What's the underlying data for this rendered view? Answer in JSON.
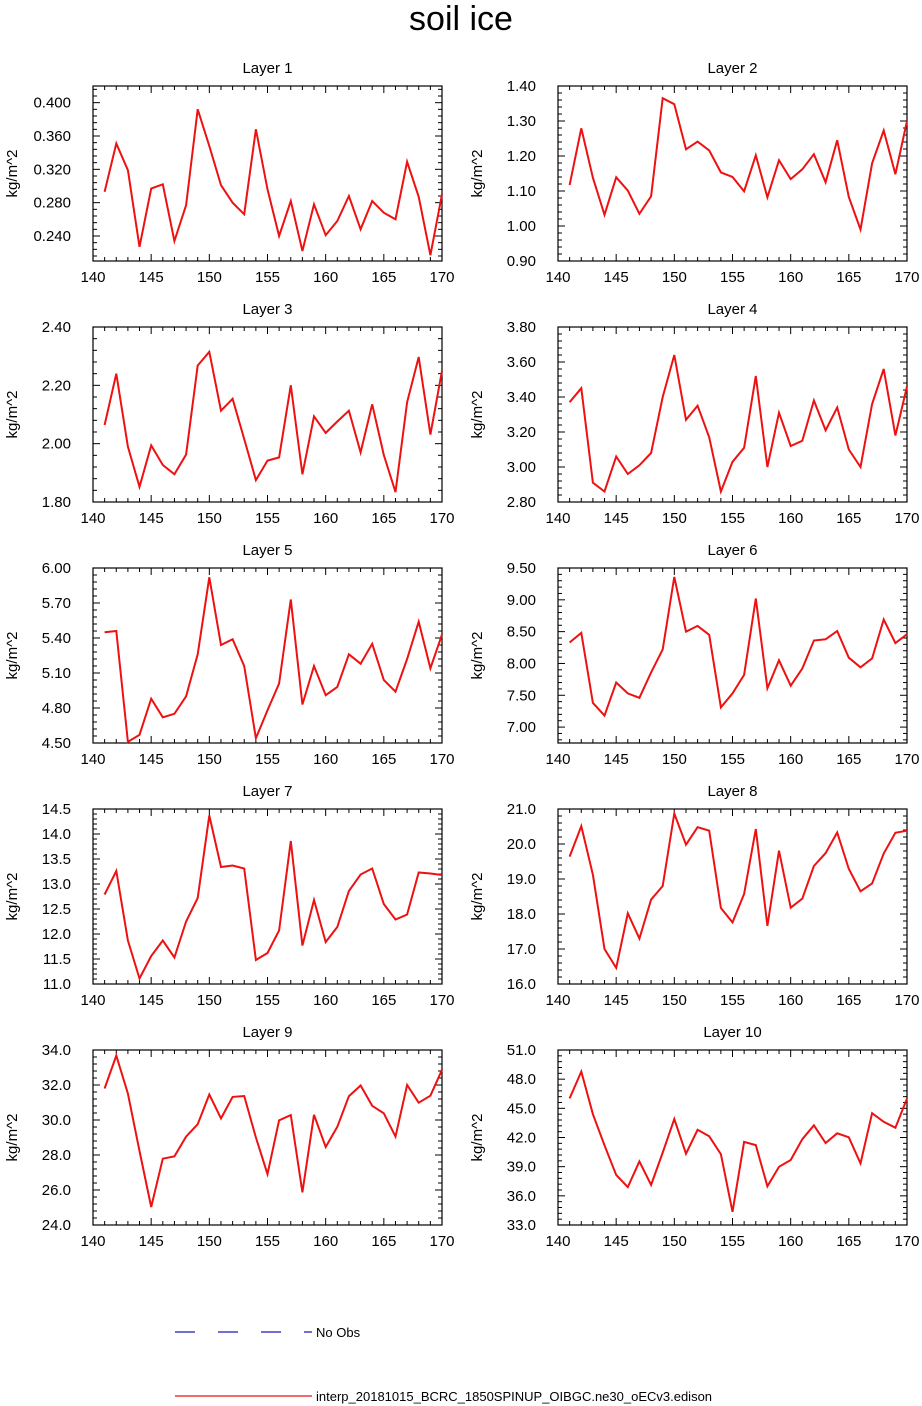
{
  "figure_title": "soil ice",
  "colors": {
    "series": "#ee1111",
    "no_obs": "#1a1ab4",
    "axis": "#000000"
  },
  "legend": [
    {
      "label": "No Obs",
      "style": "dashed",
      "color": "#1a1ab4"
    },
    {
      "label": "interp_20181015_BCRC_1850SPINUP_OIBGC.ne30_oECv3.edison",
      "style": "solid",
      "color": "#ee1111"
    }
  ],
  "chart_data": [
    {
      "type": "line",
      "title": "Layer 1",
      "ylabel": "kg/m^2",
      "xlim": [
        140,
        170
      ],
      "ylim": [
        0.21,
        0.42
      ],
      "xticks": [
        "140",
        "145",
        "150",
        "155",
        "160",
        "165",
        "170"
      ],
      "yticks": [
        "0.240",
        "0.280",
        "0.320",
        "0.360",
        "0.400"
      ],
      "x": [
        141,
        142,
        143,
        144,
        145,
        146,
        147,
        148,
        149,
        150,
        151,
        152,
        153,
        154,
        155,
        156,
        157,
        158,
        159,
        160,
        161,
        162,
        163,
        164,
        165,
        166,
        167,
        168,
        169,
        170
      ],
      "values": [
        0.293,
        0.351,
        0.319,
        0.227,
        0.297,
        0.302,
        0.234,
        0.277,
        0.392,
        0.348,
        0.301,
        0.28,
        0.266,
        0.368,
        0.296,
        0.24,
        0.282,
        0.222,
        0.278,
        0.241,
        0.258,
        0.288,
        0.248,
        0.282,
        0.268,
        0.26,
        0.329,
        0.287,
        0.217,
        0.29
      ]
    },
    {
      "type": "line",
      "title": "Layer 2",
      "ylabel": "kg/m^2",
      "xlim": [
        140,
        170
      ],
      "ylim": [
        0.9,
        1.4
      ],
      "xticks": [
        "140",
        "145",
        "150",
        "155",
        "160",
        "165",
        "170"
      ],
      "yticks": [
        "0.90",
        "1.00",
        "1.10",
        "1.20",
        "1.30",
        "1.40"
      ],
      "x": [
        141,
        142,
        143,
        144,
        145,
        146,
        147,
        148,
        149,
        150,
        151,
        152,
        153,
        154,
        155,
        156,
        157,
        158,
        159,
        160,
        161,
        162,
        163,
        164,
        165,
        166,
        167,
        168,
        169,
        170
      ],
      "values": [
        1.117,
        1.279,
        1.138,
        1.032,
        1.139,
        1.101,
        1.035,
        1.085,
        1.365,
        1.348,
        1.219,
        1.241,
        1.216,
        1.153,
        1.14,
        1.099,
        1.202,
        1.082,
        1.188,
        1.134,
        1.162,
        1.205,
        1.125,
        1.245,
        1.083,
        0.99,
        1.179,
        1.273,
        1.148,
        1.3
      ]
    },
    {
      "type": "line",
      "title": "Layer 3",
      "ylabel": "kg/m^2",
      "xlim": [
        140,
        170
      ],
      "ylim": [
        1.8,
        2.4
      ],
      "xticks": [
        "140",
        "145",
        "150",
        "155",
        "160",
        "165",
        "170"
      ],
      "yticks": [
        "1.80",
        "2.00",
        "2.20",
        "2.40"
      ],
      "x": [
        141,
        142,
        143,
        144,
        145,
        146,
        147,
        148,
        149,
        150,
        151,
        152,
        153,
        154,
        155,
        156,
        157,
        158,
        159,
        160,
        161,
        162,
        163,
        164,
        165,
        166,
        167,
        168,
        169,
        170
      ],
      "values": [
        2.064,
        2.24,
        1.99,
        1.852,
        1.994,
        1.927,
        1.895,
        1.963,
        2.268,
        2.315,
        2.113,
        2.154,
        2.016,
        1.875,
        1.942,
        1.953,
        2.2,
        1.895,
        2.094,
        2.037,
        2.076,
        2.113,
        1.97,
        2.135,
        1.961,
        1.834,
        2.142,
        2.297,
        2.031,
        2.25
      ]
    },
    {
      "type": "line",
      "title": "Layer 4",
      "ylabel": "kg/m^2",
      "xlim": [
        140,
        170
      ],
      "ylim": [
        2.8,
        3.8
      ],
      "xticks": [
        "140",
        "145",
        "150",
        "155",
        "160",
        "165",
        "170"
      ],
      "yticks": [
        "2.80",
        "3.00",
        "3.20",
        "3.40",
        "3.60",
        "3.80"
      ],
      "x": [
        141,
        142,
        143,
        144,
        145,
        146,
        147,
        148,
        149,
        150,
        151,
        152,
        153,
        154,
        155,
        156,
        157,
        158,
        159,
        160,
        161,
        162,
        163,
        164,
        165,
        166,
        167,
        168,
        169,
        170
      ],
      "values": [
        3.37,
        3.45,
        2.91,
        2.86,
        3.06,
        2.96,
        3.01,
        3.08,
        3.4,
        3.64,
        3.27,
        3.35,
        3.17,
        2.86,
        3.03,
        3.11,
        3.52,
        3.0,
        3.31,
        3.12,
        3.15,
        3.38,
        3.21,
        3.34,
        3.1,
        3.0,
        3.36,
        3.56,
        3.18,
        3.46
      ]
    },
    {
      "type": "line",
      "title": "Layer 5",
      "ylabel": "kg/m^2",
      "xlim": [
        140,
        170
      ],
      "ylim": [
        4.5,
        6.0
      ],
      "xticks": [
        "140",
        "145",
        "150",
        "155",
        "160",
        "165",
        "170"
      ],
      "yticks": [
        "4.50",
        "4.80",
        "5.10",
        "5.40",
        "5.70",
        "6.00"
      ],
      "x": [
        141,
        142,
        143,
        144,
        145,
        146,
        147,
        148,
        149,
        150,
        151,
        152,
        153,
        154,
        155,
        156,
        157,
        158,
        159,
        160,
        161,
        162,
        163,
        164,
        165,
        166,
        167,
        168,
        169,
        170
      ],
      "values": [
        5.45,
        5.46,
        4.51,
        4.57,
        4.88,
        4.72,
        4.75,
        4.9,
        5.26,
        5.92,
        5.34,
        5.39,
        5.16,
        4.54,
        4.78,
        5.01,
        5.73,
        4.83,
        5.16,
        4.91,
        4.98,
        5.26,
        5.18,
        5.35,
        5.04,
        4.94,
        5.22,
        5.54,
        5.14,
        5.43
      ]
    },
    {
      "type": "line",
      "title": "Layer 6",
      "ylabel": "kg/m^2",
      "xlim": [
        140,
        170
      ],
      "ylim": [
        6.75,
        9.5
      ],
      "xticks": [
        "140",
        "145",
        "150",
        "155",
        "160",
        "165",
        "170"
      ],
      "yticks": [
        "7.00",
        "7.50",
        "8.00",
        "8.50",
        "9.00",
        "9.50"
      ],
      "x": [
        141,
        142,
        143,
        144,
        145,
        146,
        147,
        148,
        149,
        150,
        151,
        152,
        153,
        154,
        155,
        156,
        157,
        158,
        159,
        160,
        161,
        162,
        163,
        164,
        165,
        166,
        167,
        168,
        169,
        170
      ],
      "values": [
        8.33,
        8.48,
        7.38,
        7.18,
        7.7,
        7.53,
        7.46,
        7.86,
        8.22,
        9.36,
        8.5,
        8.59,
        8.45,
        7.31,
        7.53,
        7.82,
        9.02,
        7.61,
        8.05,
        7.65,
        7.92,
        8.36,
        8.38,
        8.51,
        8.09,
        7.94,
        8.08,
        8.69,
        8.32,
        8.46
      ]
    },
    {
      "type": "line",
      "title": "Layer 7",
      "ylabel": "kg/m^2",
      "xlim": [
        140,
        170
      ],
      "ylim": [
        11.0,
        14.5
      ],
      "xticks": [
        "140",
        "145",
        "150",
        "155",
        "160",
        "165",
        "170"
      ],
      "yticks": [
        "11.0",
        "11.5",
        "12.0",
        "12.5",
        "13.0",
        "13.5",
        "14.0",
        "14.5"
      ],
      "x": [
        141,
        142,
        143,
        144,
        145,
        146,
        147,
        148,
        149,
        150,
        151,
        152,
        153,
        154,
        155,
        156,
        157,
        158,
        159,
        160,
        161,
        162,
        163,
        164,
        165,
        166,
        167,
        168,
        169,
        170
      ],
      "values": [
        12.79,
        13.26,
        11.87,
        11.11,
        11.56,
        11.87,
        11.53,
        12.25,
        12.72,
        14.37,
        13.34,
        13.37,
        13.31,
        11.48,
        11.62,
        12.07,
        13.86,
        11.77,
        12.68,
        11.84,
        12.14,
        12.86,
        13.19,
        13.31,
        12.6,
        12.29,
        12.39,
        13.23,
        13.21,
        13.18
      ]
    },
    {
      "type": "line",
      "title": "Layer 8",
      "ylabel": "kg/m^2",
      "xlim": [
        140,
        170
      ],
      "ylim": [
        16.0,
        21.0
      ],
      "xticks": [
        "140",
        "145",
        "150",
        "155",
        "160",
        "165",
        "170"
      ],
      "yticks": [
        "16.0",
        "17.0",
        "18.0",
        "19.0",
        "20.0",
        "21.0"
      ],
      "x": [
        141,
        142,
        143,
        144,
        145,
        146,
        147,
        148,
        149,
        150,
        151,
        152,
        153,
        154,
        155,
        156,
        157,
        158,
        159,
        160,
        161,
        162,
        163,
        164,
        165,
        166,
        167,
        168,
        169,
        170
      ],
      "values": [
        19.64,
        20.51,
        19.12,
        17.0,
        16.46,
        18.02,
        17.3,
        18.41,
        18.8,
        20.87,
        19.98,
        20.48,
        20.38,
        18.17,
        17.76,
        18.57,
        20.43,
        17.66,
        19.81,
        18.18,
        18.44,
        19.37,
        19.74,
        20.33,
        19.29,
        18.65,
        18.87,
        19.73,
        20.32,
        20.38
      ]
    },
    {
      "type": "line",
      "title": "Layer 9",
      "ylabel": "kg/m^2",
      "xlim": [
        140,
        170
      ],
      "ylim": [
        24.0,
        34.0
      ],
      "xticks": [
        "140",
        "145",
        "150",
        "155",
        "160",
        "165",
        "170"
      ],
      "yticks": [
        "24.0",
        "26.0",
        "28.0",
        "30.0",
        "32.0",
        "34.0"
      ],
      "x": [
        141,
        142,
        143,
        144,
        145,
        146,
        147,
        148,
        149,
        150,
        151,
        152,
        153,
        154,
        155,
        156,
        157,
        158,
        159,
        160,
        161,
        162,
        163,
        164,
        165,
        166,
        167,
        168,
        169,
        170
      ],
      "values": [
        31.8,
        33.68,
        31.51,
        28.23,
        25.03,
        27.79,
        27.92,
        29.05,
        29.76,
        31.46,
        30.09,
        31.32,
        31.37,
        29.0,
        26.91,
        29.98,
        30.28,
        25.87,
        30.3,
        28.46,
        29.61,
        31.36,
        31.97,
        30.81,
        30.38,
        29.05,
        32.0,
        30.99,
        31.39,
        32.87
      ]
    },
    {
      "type": "line",
      "title": "Layer 10",
      "ylabel": "kg/m^2",
      "xlim": [
        140,
        170
      ],
      "ylim": [
        33.0,
        51.0
      ],
      "xticks": [
        "140",
        "145",
        "150",
        "155",
        "160",
        "165",
        "170"
      ],
      "yticks": [
        "33.0",
        "36.0",
        "39.0",
        "42.0",
        "45.0",
        "48.0",
        "51.0"
      ],
      "x": [
        141,
        142,
        143,
        144,
        145,
        146,
        147,
        148,
        149,
        150,
        151,
        152,
        153,
        154,
        155,
        156,
        157,
        158,
        159,
        160,
        161,
        162,
        163,
        164,
        165,
        166,
        167,
        168,
        169,
        170
      ],
      "values": [
        46.02,
        48.78,
        44.4,
        41.2,
        38.14,
        36.9,
        39.54,
        37.12,
        40.45,
        43.9,
        40.33,
        42.79,
        42.12,
        40.28,
        34.36,
        41.55,
        41.22,
        36.98,
        38.99,
        39.69,
        41.83,
        43.25,
        41.43,
        42.43,
        42.02,
        39.34,
        44.5,
        43.62,
        43.01,
        46.0
      ]
    }
  ]
}
